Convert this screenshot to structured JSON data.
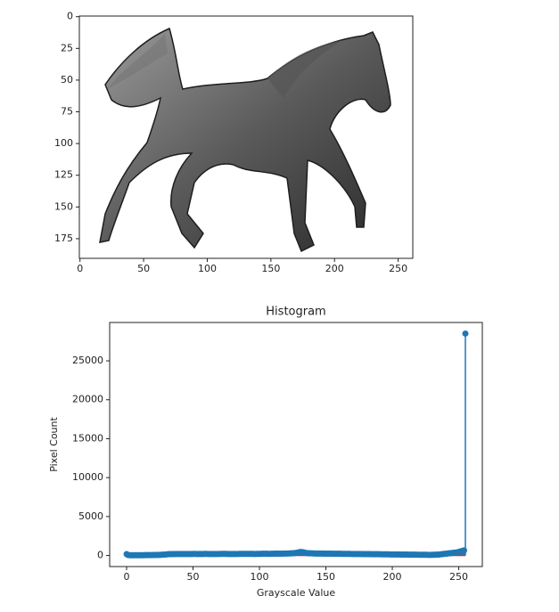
{
  "chart_data": [
    {
      "type": "image",
      "xlim": [
        -0.5,
        261.5
      ],
      "ylim": [
        190.5,
        -0.5
      ],
      "xticks": [
        0,
        50,
        100,
        150,
        200,
        250
      ],
      "yticks": [
        0,
        25,
        50,
        75,
        100,
        125,
        150,
        175
      ]
    },
    {
      "type": "stem",
      "title": "Histogram",
      "x_label": "Grayscale Value",
      "y_label": "Pixel Count",
      "color": "#1f77b4",
      "baseline_color": "#d62728",
      "xlim": [
        -12.75,
        267.75
      ],
      "ylim": [
        -1425,
        29925
      ],
      "xticks": [
        0,
        50,
        100,
        150,
        200,
        250
      ],
      "yticks": [
        0,
        5000,
        10000,
        15000,
        20000,
        25000
      ],
      "x": [
        0,
        1,
        2,
        3,
        4,
        5,
        6,
        7,
        8,
        9,
        10,
        11,
        12,
        13,
        14,
        15,
        16,
        17,
        18,
        19,
        20,
        21,
        22,
        23,
        24,
        25,
        26,
        27,
        28,
        29,
        30,
        31,
        32,
        33,
        34,
        35,
        36,
        37,
        38,
        39,
        40,
        41,
        42,
        43,
        44,
        45,
        46,
        47,
        48,
        49,
        50,
        51,
        52,
        53,
        54,
        55,
        56,
        57,
        58,
        59,
        60,
        61,
        62,
        63,
        64,
        65,
        66,
        67,
        68,
        69,
        70,
        71,
        72,
        73,
        74,
        75,
        76,
        77,
        78,
        79,
        80,
        81,
        82,
        83,
        84,
        85,
        86,
        87,
        88,
        89,
        90,
        91,
        92,
        93,
        94,
        95,
        96,
        97,
        98,
        99,
        100,
        101,
        102,
        103,
        104,
        105,
        106,
        107,
        108,
        109,
        110,
        111,
        112,
        113,
        114,
        115,
        116,
        117,
        118,
        119,
        120,
        121,
        122,
        123,
        124,
        125,
        126,
        127,
        128,
        129,
        130,
        131,
        132,
        133,
        134,
        135,
        136,
        137,
        138,
        139,
        140,
        141,
        142,
        143,
        144,
        145,
        146,
        147,
        148,
        149,
        150,
        151,
        152,
        153,
        154,
        155,
        156,
        157,
        158,
        159,
        160,
        161,
        162,
        163,
        164,
        165,
        166,
        167,
        168,
        169,
        170,
        171,
        172,
        173,
        174,
        175,
        176,
        177,
        178,
        179,
        180,
        181,
        182,
        183,
        184,
        185,
        186,
        187,
        188,
        189,
        190,
        191,
        192,
        193,
        194,
        195,
        196,
        197,
        198,
        199,
        200,
        201,
        202,
        203,
        204,
        205,
        206,
        207,
        208,
        209,
        210,
        211,
        212,
        213,
        214,
        215,
        216,
        217,
        218,
        219,
        220,
        221,
        222,
        223,
        224,
        225,
        226,
        227,
        228,
        229,
        230,
        231,
        232,
        233,
        234,
        235,
        236,
        237,
        238,
        239,
        240,
        241,
        242,
        243,
        244,
        245,
        246,
        247,
        248,
        249,
        250,
        251,
        252,
        253,
        254,
        255
      ],
      "values": [
        180,
        60,
        40,
        35,
        30,
        28,
        30,
        32,
        35,
        30,
        33,
        36,
        40,
        38,
        42,
        45,
        48,
        50,
        52,
        55,
        58,
        60,
        65,
        70,
        75,
        80,
        90,
        100,
        110,
        120,
        140,
        160,
        170,
        175,
        180,
        178,
        182,
        185,
        190,
        188,
        186,
        184,
        190,
        195,
        192,
        188,
        185,
        190,
        192,
        195,
        198,
        200,
        196,
        194,
        190,
        188,
        192,
        195,
        198,
        200,
        202,
        198,
        195,
        192,
        190,
        188,
        186,
        190,
        194,
        196,
        198,
        200,
        204,
        206,
        202,
        200,
        198,
        196,
        194,
        192,
        190,
        192,
        194,
        196,
        198,
        200,
        202,
        204,
        206,
        208,
        210,
        208,
        206,
        204,
        202,
        200,
        198,
        196,
        200,
        204,
        208,
        212,
        216,
        220,
        218,
        216,
        214,
        212,
        210,
        215,
        220,
        225,
        230,
        235,
        240,
        238,
        236,
        234,
        240,
        245,
        250,
        255,
        260,
        265,
        270,
        280,
        300,
        320,
        340,
        380,
        420,
        450,
        430,
        400,
        360,
        320,
        300,
        290,
        280,
        270,
        265,
        260,
        255,
        250,
        248,
        246,
        244,
        242,
        240,
        238,
        236,
        234,
        232,
        230,
        228,
        226,
        224,
        222,
        220,
        218,
        216,
        214,
        212,
        210,
        208,
        206,
        204,
        202,
        200,
        198,
        196,
        194,
        192,
        190,
        188,
        186,
        184,
        182,
        180,
        178,
        176,
        174,
        172,
        170,
        168,
        166,
        164,
        162,
        160,
        158,
        156,
        154,
        152,
        150,
        148,
        146,
        144,
        142,
        140,
        138,
        136,
        134,
        132,
        130,
        128,
        126,
        124,
        122,
        120,
        118,
        116,
        114,
        112,
        110,
        108,
        106,
        104,
        102,
        100,
        98,
        96,
        94,
        92,
        90,
        88,
        86,
        84,
        82,
        80,
        82,
        85,
        90,
        95,
        100,
        110,
        120,
        140,
        160,
        180,
        200,
        220,
        240,
        260,
        280,
        300,
        320,
        340,
        360,
        380,
        400,
        450,
        500,
        550,
        600,
        650,
        28500
      ]
    }
  ]
}
